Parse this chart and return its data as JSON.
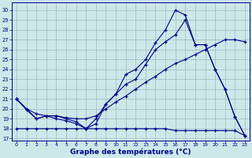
{
  "xlabel": "Graphe des températures (°C)",
  "bg_color": "#cce8e8",
  "line_color": "#00008b",
  "grid_color": "#99aabb",
  "x_ticks": [
    0,
    1,
    2,
    3,
    4,
    5,
    6,
    7,
    8,
    9,
    10,
    11,
    12,
    13,
    14,
    15,
    16,
    17,
    18,
    19,
    20,
    21,
    22,
    23
  ],
  "y_ticks": [
    17,
    18,
    19,
    20,
    21,
    22,
    23,
    24,
    25,
    26,
    27,
    28,
    29,
    30
  ],
  "xlim": [
    -0.5,
    23.5
  ],
  "ylim": [
    16.8,
    30.8
  ],
  "line1_x": [
    0,
    1,
    2,
    3,
    4,
    5,
    6,
    7,
    8,
    9,
    10,
    11,
    12,
    13,
    14,
    15,
    16,
    17,
    18,
    19,
    20,
    21,
    22,
    23
  ],
  "line1_y": [
    21.0,
    19.9,
    19.0,
    19.3,
    19.3,
    19.0,
    18.7,
    18.0,
    19.0,
    20.5,
    21.5,
    23.5,
    24.0,
    25.0,
    26.7,
    28.0,
    30.0,
    29.5,
    26.5,
    26.5,
    24.0,
    22.0,
    19.2,
    17.3
  ],
  "line2_x": [
    0,
    2,
    3,
    4,
    5,
    6,
    7,
    8,
    9,
    10,
    11,
    12,
    13,
    14,
    15,
    16,
    17,
    18,
    19,
    20,
    21,
    22,
    23
  ],
  "line2_y": [
    21.0,
    19.0,
    19.3,
    19.0,
    18.8,
    18.5,
    18.0,
    18.5,
    20.5,
    21.5,
    22.5,
    23.0,
    24.5,
    26.0,
    26.8,
    27.5,
    29.0,
    26.5,
    26.5,
    24.0,
    22.0,
    19.2,
    17.3
  ],
  "line3_x": [
    0,
    1,
    2,
    3,
    4,
    5,
    6,
    7,
    8,
    9,
    10,
    11,
    12,
    13,
    14,
    15,
    16,
    17,
    18,
    19,
    20,
    21,
    22,
    23
  ],
  "line3_y": [
    21.0,
    20.0,
    19.5,
    19.3,
    19.3,
    19.1,
    19.0,
    19.0,
    19.3,
    20.0,
    20.7,
    21.3,
    22.0,
    22.7,
    23.3,
    24.0,
    24.6,
    25.0,
    25.5,
    26.0,
    26.5,
    27.0,
    27.0,
    26.8
  ],
  "line4_x": [
    0,
    1,
    2,
    3,
    4,
    5,
    6,
    7,
    8,
    9,
    10,
    11,
    12,
    13,
    14,
    15,
    16,
    17,
    18,
    19,
    20,
    21,
    22,
    23
  ],
  "line4_y": [
    18.0,
    18.0,
    18.0,
    18.0,
    18.0,
    18.0,
    18.0,
    18.0,
    18.0,
    18.0,
    18.0,
    18.0,
    18.0,
    18.0,
    18.0,
    18.0,
    17.8,
    17.8,
    17.8,
    17.8,
    17.8,
    17.8,
    17.8,
    17.3
  ]
}
